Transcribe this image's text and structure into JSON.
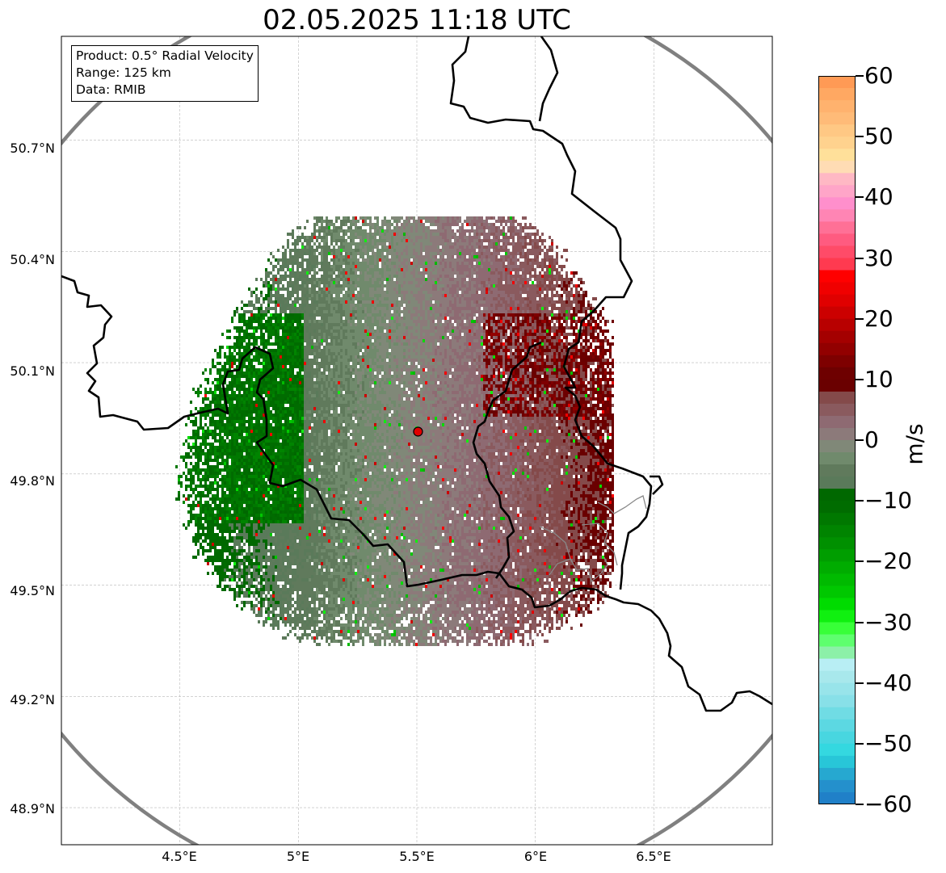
{
  "title": "02.05.2025 11:18 UTC",
  "info_box": {
    "product": "Product: 0.5° Radial Velocity",
    "range": "Range: 125 km",
    "data": "Data: RMIB"
  },
  "map": {
    "lon_range": [
      4.0,
      7.0
    ],
    "lat_range": [
      48.8,
      50.98
    ],
    "longitude_ticks": [
      {
        "value": 4.5,
        "label": "4.5°E"
      },
      {
        "value": 5.0,
        "label": "5°E"
      },
      {
        "value": 5.5,
        "label": "5.5°E"
      },
      {
        "value": 6.0,
        "label": "6°E"
      },
      {
        "value": 6.5,
        "label": "6.5°E"
      }
    ],
    "latitude_ticks": [
      {
        "value": 50.7,
        "label": "50.7°N"
      },
      {
        "value": 50.4,
        "label": "50.4°N"
      },
      {
        "value": 50.1,
        "label": "50.1°N"
      },
      {
        "value": 49.8,
        "label": "49.8°N"
      },
      {
        "value": 49.5,
        "label": "49.5°N"
      },
      {
        "value": 49.2,
        "label": "49.2°N"
      },
      {
        "value": 48.9,
        "label": "48.9°N"
      }
    ],
    "radar_site": {
      "lon": 5.505,
      "lat": 49.914,
      "color": "#e00000"
    },
    "gridlines": true,
    "range_ring_color": "#808080",
    "border_color": "#000000",
    "subdivision_color": "#888888"
  },
  "colorbar": {
    "unit": "m/s",
    "min": -60,
    "max": 60,
    "ticks": [
      {
        "value": 60,
        "label": "60"
      },
      {
        "value": 50,
        "label": "50"
      },
      {
        "value": 40,
        "label": "40"
      },
      {
        "value": 30,
        "label": "30"
      },
      {
        "value": 20,
        "label": "20"
      },
      {
        "value": 10,
        "label": "10"
      },
      {
        "value": 0,
        "label": "0"
      },
      {
        "value": -10,
        "label": "−10"
      },
      {
        "value": -20,
        "label": "−20"
      },
      {
        "value": -30,
        "label": "−30"
      },
      {
        "value": -40,
        "label": "−40"
      },
      {
        "value": -50,
        "label": "−50"
      },
      {
        "value": -60,
        "label": "−60"
      }
    ],
    "colors_top_to_bottom": [
      "#ff9a55",
      "#ffa862",
      "#ffb26e",
      "#ffbb78",
      "#ffc884",
      "#ffd28e",
      "#ffe09a",
      "#ffdcb4",
      "#ffb8c4",
      "#ffa5c8",
      "#ff8fcc",
      "#ff85b4",
      "#ff7096",
      "#ff5b80",
      "#ff4b68",
      "#ff3a50",
      "#ff0000",
      "#f00000",
      "#e00000",
      "#cc0000",
      "#b80000",
      "#a40000",
      "#920000",
      "#7e0000",
      "#6e0000",
      "#6a0000",
      "#844a4a",
      "#8a5a5e",
      "#8e6a72",
      "#8c7a7a",
      "#808878",
      "#708a6c",
      "#607a5c",
      "#5a7a5a",
      "#006800",
      "#006c00",
      "#007800",
      "#008400",
      "#009000",
      "#009e00",
      "#00ac00",
      "#00ba00",
      "#00c800",
      "#00dc00",
      "#10f010",
      "#38ff38",
      "#5eff6e",
      "#8cf0a8",
      "#b8eef4",
      "#a8e8ec",
      "#98e4ea",
      "#88e0e8",
      "#70dce4",
      "#5cd8e2",
      "#48d6e0",
      "#34d8e0",
      "#28c6d8",
      "#26a8d0",
      "#2490cc",
      "#2080c8"
    ]
  }
}
